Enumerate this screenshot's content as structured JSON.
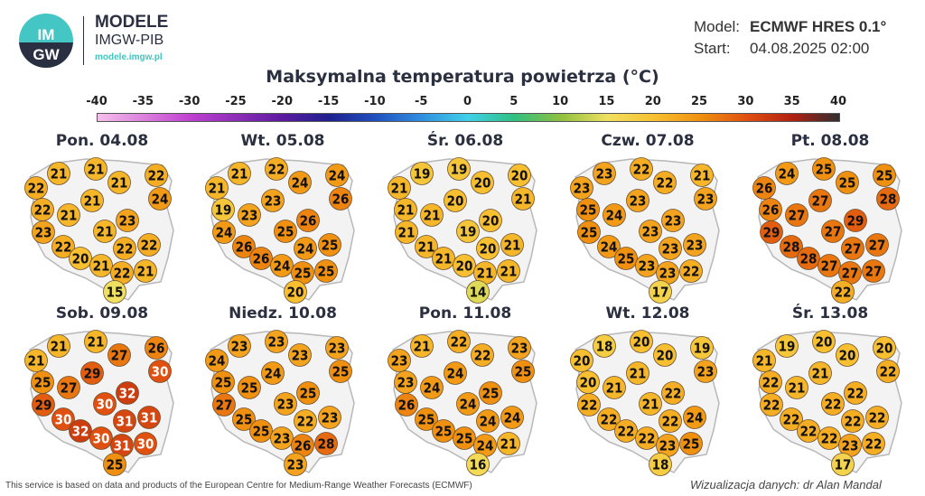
{
  "header": {
    "logo_text": "IMGW",
    "brand_title": "MODELE",
    "brand_subtitle": "IMGW-PIB",
    "brand_url": "modele.imgw.pl",
    "model_label": "Model:",
    "model_value": "ECMWF HRES 0.1°",
    "start_label": "Start:",
    "start_value": "04.08.2025 02:00"
  },
  "title": "Maksymalna temperatura powietrza (°C)",
  "colorbar": {
    "ticks": [
      "-40",
      "-35",
      "-30",
      "-25",
      "-20",
      "-15",
      "-10",
      "-5",
      "0",
      "5",
      "10",
      "15",
      "20",
      "25",
      "30",
      "35",
      "40"
    ],
    "range": [
      -40,
      40
    ],
    "stops": [
      {
        "v": -40,
        "c": "#f6c0ec"
      },
      {
        "v": -30,
        "c": "#c040d0"
      },
      {
        "v": -20,
        "c": "#5a1aa0"
      },
      {
        "v": -15,
        "c": "#1e208e"
      },
      {
        "v": -10,
        "c": "#2050c0"
      },
      {
        "v": -5,
        "c": "#3090e0"
      },
      {
        "v": 0,
        "c": "#40d0e8"
      },
      {
        "v": 5,
        "c": "#30c080"
      },
      {
        "v": 10,
        "c": "#90c040"
      },
      {
        "v": 15,
        "c": "#f0e060"
      },
      {
        "v": 20,
        "c": "#f8c030"
      },
      {
        "v": 25,
        "c": "#f09010"
      },
      {
        "v": 30,
        "c": "#e05010"
      },
      {
        "v": 35,
        "c": "#b02010"
      },
      {
        "v": 40,
        "c": "#303030"
      }
    ]
  },
  "days": [
    {
      "label": "Pon. 04.08",
      "values": [
        21,
        21,
        22,
        22,
        21,
        24,
        21,
        22,
        21,
        23,
        23,
        21,
        22,
        22,
        22,
        20,
        21,
        22,
        21,
        15
      ]
    },
    {
      "label": "Wt. 05.08",
      "values": [
        21,
        22,
        24,
        21,
        24,
        26,
        23,
        19,
        23,
        26,
        24,
        25,
        25,
        26,
        24,
        26,
        24,
        25,
        25,
        20
      ]
    },
    {
      "label": "Śr. 06.08",
      "values": [
        19,
        19,
        20,
        21,
        20,
        21,
        20,
        21,
        21,
        20,
        21,
        19,
        21,
        21,
        20,
        21,
        20,
        21,
        21,
        14
      ]
    },
    {
      "label": "Czw. 07.08",
      "values": [
        23,
        22,
        21,
        23,
        22,
        23,
        23,
        25,
        24,
        23,
        25,
        23,
        23,
        24,
        23,
        25,
        23,
        23,
        22,
        17
      ]
    },
    {
      "label": "Pt. 08.08",
      "values": [
        24,
        25,
        25,
        26,
        25,
        28,
        27,
        26,
        27,
        29,
        29,
        27,
        27,
        28,
        27,
        28,
        27,
        27,
        27,
        22
      ]
    },
    {
      "label": "Sob. 09.08",
      "values": [
        21,
        21,
        26,
        21,
        27,
        30,
        29,
        25,
        27,
        32,
        29,
        30,
        31,
        30,
        31,
        32,
        30,
        31,
        30,
        25
      ]
    },
    {
      "label": "Niedz. 10.08",
      "values": [
        23,
        23,
        23,
        24,
        23,
        25,
        24,
        25,
        25,
        25,
        27,
        23,
        23,
        25,
        22,
        25,
        23,
        26,
        28,
        23
      ]
    },
    {
      "label": "Pon. 11.08",
      "values": [
        21,
        22,
        23,
        23,
        22,
        25,
        24,
        23,
        24,
        25,
        26,
        24,
        24,
        25,
        24,
        25,
        25,
        24,
        21,
        16
      ]
    },
    {
      "label": "Wt. 12.08",
      "values": [
        18,
        20,
        19,
        20,
        20,
        23,
        21,
        20,
        21,
        22,
        22,
        21,
        24,
        22,
        22,
        22,
        22,
        23,
        25,
        18
      ]
    },
    {
      "label": "Śr. 13.08",
      "values": [
        19,
        20,
        20,
        21,
        20,
        22,
        21,
        22,
        21,
        22,
        22,
        22,
        22,
        22,
        22,
        22,
        22,
        23,
        22,
        17
      ]
    }
  ],
  "footer": {
    "source": "This service is based on data and products of the European Centre for Medium-Range Weather Forecasts (ECMWF)",
    "credit": "Wizualizacja danych: dr Alan Mandal"
  }
}
